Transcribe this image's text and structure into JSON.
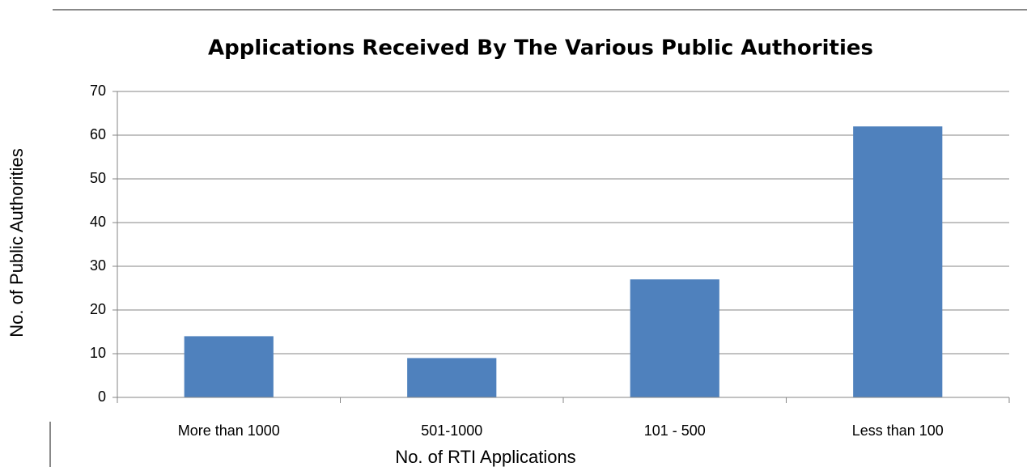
{
  "chart_data": {
    "type": "bar",
    "title": "Applications Received By The Various Public Authorities",
    "x_label": "No. of RTI Applications",
    "y_label": "No. of Public Authorities",
    "categories": [
      "More than 1000",
      "501-1000",
      "101 - 500",
      "Less than 100"
    ],
    "values": [
      14,
      9,
      27,
      62
    ],
    "color": "#4f81bd",
    "ylim": [
      0,
      70
    ],
    "yticks": [
      0,
      10,
      20,
      30,
      40,
      50,
      60,
      70
    ],
    "grid": true
  }
}
